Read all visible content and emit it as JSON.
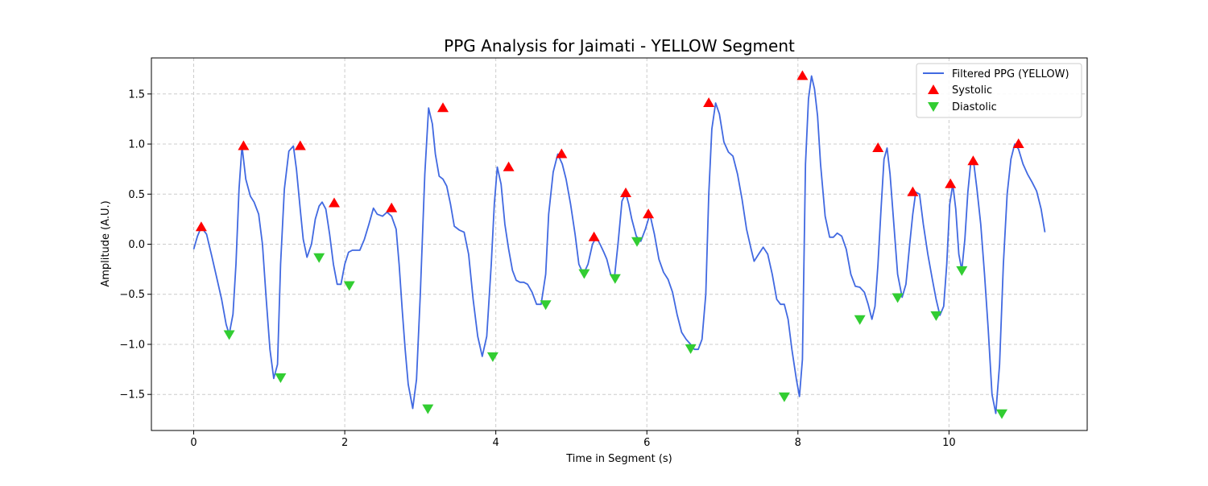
{
  "chart_data": {
    "type": "line",
    "title": "PPG Analysis for Jaimati - YELLOW Segment",
    "xlabel": "Time in Segment (s)",
    "ylabel": "Amplitude (A.U.)",
    "xlim": [
      -0.56,
      11.83
    ],
    "ylim": [
      -1.86,
      1.86
    ],
    "xticks": [
      0,
      2,
      4,
      6,
      8,
      10
    ],
    "yticks": [
      -1.5,
      -1.0,
      -0.5,
      0.0,
      0.5,
      1.0,
      1.5
    ],
    "xtick_labels": [
      "0",
      "2",
      "4",
      "6",
      "8",
      "10"
    ],
    "ytick_labels": [
      "−1.5",
      "−1.0",
      "−0.5",
      "0.0",
      "0.5",
      "1.0",
      "1.5"
    ],
    "grid": true,
    "legend_position": "top-right",
    "series": [
      {
        "name": "Filtered PPG (YELLOW)",
        "kind": "line",
        "color": "#4169e1",
        "x": [
          0.0,
          0.05,
          0.1,
          0.17,
          0.24,
          0.3,
          0.37,
          0.43,
          0.47,
          0.52,
          0.56,
          0.6,
          0.64,
          0.69,
          0.75,
          0.8,
          0.86,
          0.91,
          0.96,
          1.01,
          1.06,
          1.11,
          1.15,
          1.2,
          1.26,
          1.32,
          1.36,
          1.41,
          1.45,
          1.5,
          1.56,
          1.61,
          1.66,
          1.7,
          1.75,
          1.8,
          1.85,
          1.9,
          1.95,
          2.0,
          2.05,
          2.1,
          2.15,
          2.2,
          2.26,
          2.32,
          2.38,
          2.43,
          2.5,
          2.56,
          2.62,
          2.68,
          2.72,
          2.76,
          2.8,
          2.84,
          2.9,
          2.95,
          3.0,
          3.06,
          3.11,
          3.16,
          3.2,
          3.25,
          3.3,
          3.35,
          3.4,
          3.45,
          3.52,
          3.58,
          3.64,
          3.7,
          3.76,
          3.82,
          3.88,
          3.94,
          3.98,
          4.02,
          4.07,
          4.12,
          4.17,
          4.22,
          4.27,
          4.32,
          4.37,
          4.42,
          4.48,
          4.54,
          4.6,
          4.66,
          4.7,
          4.76,
          4.82,
          4.88,
          4.93,
          4.99,
          5.05,
          5.1,
          5.16,
          5.22,
          5.28,
          5.33,
          5.38,
          5.43,
          5.47,
          5.52,
          5.57,
          5.62,
          5.67,
          5.72,
          5.76,
          5.8,
          5.86,
          5.92,
          5.98,
          6.04,
          6.1,
          6.16,
          6.22,
          6.28,
          6.34,
          6.4,
          6.46,
          6.52,
          6.58,
          6.63,
          6.68,
          6.73,
          6.78,
          6.82,
          6.86,
          6.91,
          6.96,
          7.02,
          7.08,
          7.14,
          7.2,
          7.26,
          7.32,
          7.38,
          7.42,
          7.48,
          7.54,
          7.6,
          7.66,
          7.72,
          7.77,
          7.82,
          7.87,
          7.92,
          7.98,
          8.02,
          8.06,
          8.1,
          8.14,
          8.18,
          8.22,
          8.26,
          8.3,
          8.36,
          8.42,
          8.47,
          8.52,
          8.58,
          8.64,
          8.7,
          8.76,
          8.82,
          8.88,
          8.93,
          8.98,
          9.02,
          9.06,
          9.1,
          9.14,
          9.18,
          9.22,
          9.27,
          9.32,
          9.38,
          9.43,
          9.48,
          9.52,
          9.56,
          9.61,
          9.66,
          9.72,
          9.78,
          9.83,
          9.88,
          9.93,
          9.97,
          10.01,
          10.05,
          10.09,
          10.13,
          10.17,
          10.21,
          10.25,
          10.29,
          10.33,
          10.37,
          10.42,
          10.47,
          10.52,
          10.57,
          10.62,
          10.67,
          10.72,
          10.77,
          10.82,
          10.87,
          10.92,
          10.98,
          11.04,
          11.1,
          11.16,
          11.22,
          11.27
        ],
        "y": [
          -0.05,
          0.08,
          0.17,
          0.1,
          -0.12,
          -0.32,
          -0.55,
          -0.8,
          -0.9,
          -0.7,
          -0.2,
          0.55,
          0.98,
          0.65,
          0.48,
          0.42,
          0.3,
          0.0,
          -0.55,
          -1.05,
          -1.34,
          -1.2,
          -0.2,
          0.55,
          0.93,
          0.98,
          0.75,
          0.35,
          0.05,
          -0.13,
          0.0,
          0.25,
          0.38,
          0.42,
          0.35,
          0.1,
          -0.2,
          -0.4,
          -0.4,
          -0.2,
          -0.08,
          -0.06,
          -0.06,
          -0.06,
          0.05,
          0.2,
          0.36,
          0.3,
          0.28,
          0.32,
          0.28,
          0.15,
          -0.2,
          -0.65,
          -1.05,
          -1.4,
          -1.64,
          -1.35,
          -0.5,
          0.7,
          1.36,
          1.2,
          0.9,
          0.68,
          0.65,
          0.58,
          0.4,
          0.18,
          0.14,
          0.12,
          -0.1,
          -0.55,
          -0.92,
          -1.12,
          -0.92,
          -0.2,
          0.4,
          0.77,
          0.6,
          0.2,
          -0.05,
          -0.26,
          -0.36,
          -0.38,
          -0.38,
          -0.4,
          -0.48,
          -0.6,
          -0.6,
          -0.3,
          0.3,
          0.72,
          0.9,
          0.8,
          0.65,
          0.4,
          0.1,
          -0.2,
          -0.3,
          -0.2,
          0.0,
          0.07,
          0.0,
          -0.08,
          -0.15,
          -0.3,
          -0.34,
          0.02,
          0.43,
          0.51,
          0.4,
          0.25,
          0.08,
          0.03,
          0.15,
          0.3,
          0.1,
          -0.15,
          -0.28,
          -0.35,
          -0.48,
          -0.7,
          -0.88,
          -0.95,
          -1.0,
          -1.05,
          -1.05,
          -0.95,
          -0.5,
          0.5,
          1.15,
          1.41,
          1.3,
          1.02,
          0.92,
          0.88,
          0.7,
          0.45,
          0.15,
          -0.05,
          -0.17,
          -0.1,
          -0.03,
          -0.1,
          -0.3,
          -0.55,
          -0.6,
          -0.6,
          -0.75,
          -1.05,
          -1.35,
          -1.52,
          -1.15,
          0.8,
          1.45,
          1.68,
          1.55,
          1.28,
          0.8,
          0.28,
          0.07,
          0.07,
          0.11,
          0.08,
          -0.05,
          -0.3,
          -0.42,
          -0.43,
          -0.48,
          -0.6,
          -0.75,
          -0.62,
          -0.2,
          0.35,
          0.85,
          0.96,
          0.7,
          0.2,
          -0.3,
          -0.53,
          -0.4,
          0.0,
          0.3,
          0.52,
          0.5,
          0.2,
          -0.1,
          -0.35,
          -0.55,
          -0.71,
          -0.62,
          -0.2,
          0.4,
          0.6,
          0.35,
          -0.1,
          -0.26,
          0.05,
          0.52,
          0.83,
          0.8,
          0.55,
          0.2,
          -0.3,
          -0.85,
          -1.5,
          -1.69,
          -1.2,
          -0.2,
          0.5,
          0.85,
          1.0,
          0.95,
          0.8,
          0.7,
          0.62,
          0.53,
          0.35,
          0.12
        ]
      },
      {
        "name": "Systolic",
        "kind": "marker-up",
        "color": "#ff0000",
        "x": [
          0.1,
          0.66,
          1.41,
          1.86,
          2.62,
          3.3,
          4.17,
          4.87,
          5.3,
          5.72,
          6.02,
          6.82,
          8.06,
          9.06,
          9.52,
          10.02,
          10.32,
          10.92
        ],
        "y": [
          0.17,
          0.98,
          0.98,
          0.41,
          0.36,
          1.36,
          0.77,
          0.9,
          0.07,
          0.51,
          0.3,
          1.41,
          1.68,
          0.96,
          0.52,
          0.6,
          0.83,
          1.0
        ]
      },
      {
        "name": "Diastolic",
        "kind": "marker-down",
        "color": "#32cd32",
        "x": [
          0.47,
          1.15,
          1.66,
          2.06,
          3.1,
          3.96,
          4.66,
          5.17,
          5.58,
          5.87,
          6.58,
          7.82,
          8.82,
          9.32,
          9.83,
          10.17,
          10.7
        ],
        "y": [
          -0.9,
          -1.33,
          -0.13,
          -0.41,
          -1.64,
          -1.12,
          -0.6,
          -0.29,
          -0.34,
          0.03,
          -1.04,
          -1.52,
          -0.75,
          -0.53,
          -0.71,
          -0.26,
          -1.69
        ]
      }
    ]
  }
}
